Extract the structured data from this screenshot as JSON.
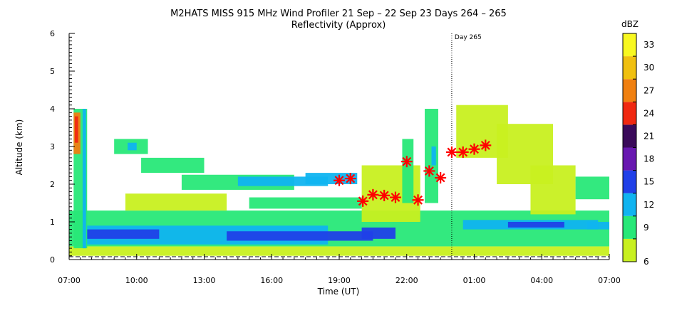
{
  "chart_data": {
    "type": "heatmap",
    "title": "M2HATS MISS 915 MHz Wind Profiler  21 Sep – 22 Sep 23 Days 264 – 265",
    "subtitle": "Reflectivity (Approx)",
    "xlabel": "Time (UT)",
    "ylabel": "Altitude (km)",
    "x_ticks": [
      "07:00",
      "10:00",
      "13:00",
      "16:00",
      "19:00",
      "22:00",
      "01:00",
      "04:00",
      "07:00"
    ],
    "x_range_hours": [
      0,
      24
    ],
    "y_ticks": [
      "0",
      "1",
      "2",
      "3",
      "4",
      "5",
      "6"
    ],
    "ylim": [
      0,
      6
    ],
    "day_marker": {
      "label": "Day 265",
      "x_hours": 17
    },
    "colorbar": {
      "unit": "dBZ",
      "tick_labels": [
        "6",
        "9",
        "12",
        "15",
        "18",
        "21",
        "24",
        "27",
        "30",
        "33"
      ],
      "colors": [
        "#c8f020",
        "#28e878",
        "#10b4f0",
        "#2040e8",
        "#6818b0",
        "#3a0a5a",
        "#f02810",
        "#f08010",
        "#f0c010",
        "#f8f820"
      ]
    },
    "markers": {
      "symbol": "asterisk",
      "color": "#ff0000",
      "points": [
        {
          "x_hours": 12.0,
          "y_km": 2.1
        },
        {
          "x_hours": 12.5,
          "y_km": 2.15
        },
        {
          "x_hours": 13.05,
          "y_km": 1.55
        },
        {
          "x_hours": 13.5,
          "y_km": 1.72
        },
        {
          "x_hours": 14.0,
          "y_km": 1.7
        },
        {
          "x_hours": 14.5,
          "y_km": 1.65
        },
        {
          "x_hours": 15.0,
          "y_km": 2.6
        },
        {
          "x_hours": 15.5,
          "y_km": 1.58
        },
        {
          "x_hours": 16.0,
          "y_km": 2.35
        },
        {
          "x_hours": 16.5,
          "y_km": 2.17
        },
        {
          "x_hours": 17.0,
          "y_km": 2.85
        },
        {
          "x_hours": 17.5,
          "y_km": 2.85
        },
        {
          "x_hours": 18.0,
          "y_km": 2.93
        },
        {
          "x_hours": 18.5,
          "y_km": 3.03
        }
      ]
    },
    "regions": [
      {
        "x": [
          0.0,
          24.0
        ],
        "y": [
          0.1,
          0.35
        ],
        "dbz": 8
      },
      {
        "x": [
          0.0,
          24.0
        ],
        "y": [
          0.35,
          1.3
        ],
        "dbz": 9
      },
      {
        "x": [
          0.5,
          11.5
        ],
        "y": [
          0.4,
          0.9
        ],
        "dbz": 13
      },
      {
        "x": [
          0.8,
          4.0
        ],
        "y": [
          0.55,
          0.8
        ],
        "dbz": 16
      },
      {
        "x": [
          7.0,
          13.5
        ],
        "y": [
          0.5,
          0.75
        ],
        "dbz": 16
      },
      {
        "x": [
          13.0,
          14.5
        ],
        "y": [
          0.55,
          0.85
        ],
        "dbz": 16
      },
      {
        "x": [
          17.5,
          23.5
        ],
        "y": [
          0.8,
          1.05
        ],
        "dbz": 12
      },
      {
        "x": [
          19.5,
          22.0
        ],
        "y": [
          0.85,
          1.0
        ],
        "dbz": 16
      },
      {
        "x": [
          0.2,
          0.8
        ],
        "y": [
          0.3,
          4.0
        ],
        "dbz": 11
      },
      {
        "x": [
          0.2,
          0.5
        ],
        "y": [
          2.8,
          3.9
        ],
        "dbz": 27
      },
      {
        "x": [
          0.25,
          0.4
        ],
        "y": [
          3.1,
          3.8
        ],
        "dbz": 24
      },
      {
        "x": [
          0.6,
          0.75
        ],
        "y": [
          0.3,
          4.0
        ],
        "dbz": 14
      },
      {
        "x": [
          2.0,
          3.5
        ],
        "y": [
          2.8,
          3.2
        ],
        "dbz": 10
      },
      {
        "x": [
          2.6,
          3.0
        ],
        "y": [
          2.9,
          3.1
        ],
        "dbz": 13
      },
      {
        "x": [
          3.2,
          6.0
        ],
        "y": [
          2.3,
          2.7
        ],
        "dbz": 9
      },
      {
        "x": [
          5.0,
          10.0
        ],
        "y": [
          1.85,
          2.25
        ],
        "dbz": 9
      },
      {
        "x": [
          7.5,
          11.5
        ],
        "y": [
          1.95,
          2.2
        ],
        "dbz": 12
      },
      {
        "x": [
          10.5,
          12.8
        ],
        "y": [
          2.0,
          2.3
        ],
        "dbz": 12
      },
      {
        "x": [
          2.5,
          7.0
        ],
        "y": [
          1.3,
          1.75
        ],
        "dbz": 8
      },
      {
        "x": [
          8.0,
          13.0
        ],
        "y": [
          1.35,
          1.65
        ],
        "dbz": 9
      },
      {
        "x": [
          13.0,
          15.6
        ],
        "y": [
          1.0,
          2.5
        ],
        "dbz": 8
      },
      {
        "x": [
          14.8,
          15.3
        ],
        "y": [
          1.5,
          3.2
        ],
        "dbz": 10
      },
      {
        "x": [
          15.8,
          16.4
        ],
        "y": [
          1.5,
          4.0
        ],
        "dbz": 9
      },
      {
        "x": [
          16.1,
          16.3
        ],
        "y": [
          2.5,
          3.0
        ],
        "dbz": 13
      },
      {
        "x": [
          17.2,
          19.5
        ],
        "y": [
          2.7,
          4.1
        ],
        "dbz": 8
      },
      {
        "x": [
          19.0,
          21.5
        ],
        "y": [
          2.0,
          3.6
        ],
        "dbz": 7
      },
      {
        "x": [
          20.5,
          22.5
        ],
        "y": [
          1.2,
          2.5
        ],
        "dbz": 8
      },
      {
        "x": [
          22.5,
          24.0
        ],
        "y": [
          1.6,
          2.2
        ],
        "dbz": 9
      },
      {
        "x": [
          23.0,
          24.0
        ],
        "y": [
          0.8,
          1.0
        ],
        "dbz": 12
      }
    ]
  }
}
